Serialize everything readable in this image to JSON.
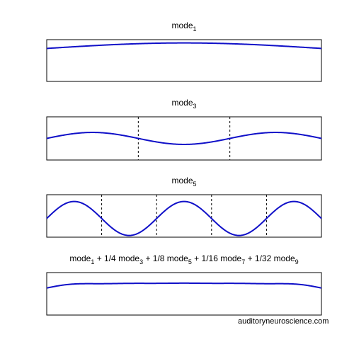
{
  "credit": "auditoryneuroscience.com",
  "colors": {
    "curve": "#1010c8",
    "frame": "#000000",
    "nodes": "#000000"
  },
  "chart_data": [
    {
      "type": "line",
      "title_parts": [
        {
          "text": "mode",
          "style": "normal"
        },
        {
          "text": "1",
          "style": "sub"
        }
      ],
      "modes": [
        {
          "n": 1,
          "amplitude": 1
        }
      ],
      "x_range": [
        0,
        1
      ],
      "ylim": [
        -6,
        1.6
      ],
      "node_lines": false,
      "grid": false
    },
    {
      "type": "line",
      "title_parts": [
        {
          "text": "mode",
          "style": "normal"
        },
        {
          "text": "3",
          "style": "sub"
        }
      ],
      "modes": [
        {
          "n": 3,
          "amplitude": 1
        }
      ],
      "x_range": [
        0,
        1
      ],
      "ylim": [
        -3.6,
        3.6
      ],
      "node_lines": true,
      "grid": false
    },
    {
      "type": "line",
      "title_parts": [
        {
          "text": "mode",
          "style": "normal"
        },
        {
          "text": "5",
          "style": "sub"
        }
      ],
      "modes": [
        {
          "n": 5,
          "amplitude": 1
        }
      ],
      "x_range": [
        0,
        1
      ],
      "ylim": [
        -1.1,
        1.4
      ],
      "node_lines": true,
      "grid": false
    },
    {
      "type": "line",
      "title_parts": [
        {
          "text": "mode",
          "style": "normal"
        },
        {
          "text": "1",
          "style": "sub"
        },
        {
          "text": " + 1/4 mode",
          "style": "normal"
        },
        {
          "text": "3",
          "style": "sub"
        },
        {
          "text": " + 1/8 mode",
          "style": "normal"
        },
        {
          "text": "5",
          "style": "sub"
        },
        {
          "text": " + 1/16 mode",
          "style": "normal"
        },
        {
          "text": "7",
          "style": "sub"
        },
        {
          "text": " + 1/32 mode",
          "style": "normal"
        },
        {
          "text": "9",
          "style": "sub"
        }
      ],
      "modes": [
        {
          "n": 1,
          "amplitude": 0.3
        },
        {
          "n": 3,
          "amplitude": 0.075
        },
        {
          "n": 5,
          "amplitude": 0.0375
        },
        {
          "n": 7,
          "amplitude": 0.01875
        },
        {
          "n": 9,
          "amplitude": 0.009375
        }
      ],
      "x_range": [
        0,
        1
      ],
      "ylim": [
        -1.4,
        0.8
      ],
      "node_lines": false,
      "grid": false
    }
  ]
}
